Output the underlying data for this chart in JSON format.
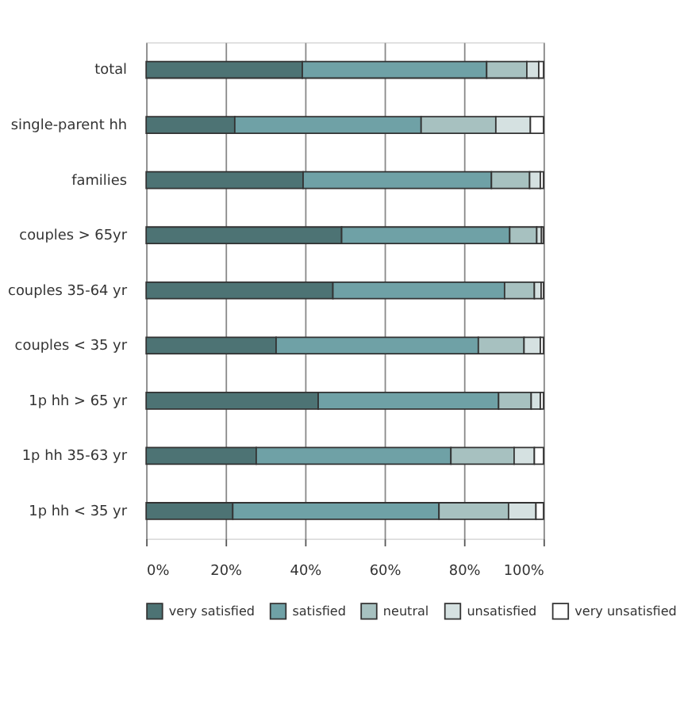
{
  "chart_data": {
    "type": "bar",
    "orientation": "horizontal",
    "stacked": true,
    "categories": [
      "total",
      "single-parent hh",
      "families",
      "couples > 65yr",
      "couples 35-64 yr",
      "couples < 35 yr",
      "1p hh > 65 yr",
      "1p hh 35-63 yr",
      "1p hh < 35 yr"
    ],
    "series": [
      {
        "name": "very satisfied",
        "color": "#4d7374",
        "values": [
          39.3,
          22.3,
          39.5,
          49.2,
          47.0,
          32.7,
          43.3,
          27.7,
          21.8
        ]
      },
      {
        "name": "satisfied",
        "color": "#6fa1a6",
        "values": [
          46.4,
          46.9,
          47.4,
          42.3,
          43.2,
          50.9,
          45.4,
          49.0,
          51.9
        ]
      },
      {
        "name": "neutral",
        "color": "#a7c1c0",
        "values": [
          10.1,
          18.8,
          9.6,
          6.8,
          7.5,
          11.5,
          8.2,
          15.9,
          17.5
        ]
      },
      {
        "name": "unsatisfied",
        "color": "#d5e1e1",
        "values": [
          3.0,
          8.7,
          2.7,
          1.2,
          1.7,
          4.1,
          2.3,
          5.1,
          6.9
        ]
      },
      {
        "name": "very unsatisfied",
        "color": "#ffffff",
        "values": [
          1.2,
          3.3,
          0.8,
          0.5,
          0.6,
          0.8,
          0.8,
          2.3,
          1.9
        ]
      }
    ],
    "xlim": [
      0,
      100
    ],
    "xticks": [
      {
        "value": 0,
        "label": "0%"
      },
      {
        "value": 20,
        "label": "20%"
      },
      {
        "value": 40,
        "label": "40%"
      },
      {
        "value": 60,
        "label": "60%"
      },
      {
        "value": 80,
        "label": "80%"
      },
      {
        "value": 100,
        "label": "100%"
      }
    ],
    "grid": "x",
    "legend": "bottom"
  }
}
